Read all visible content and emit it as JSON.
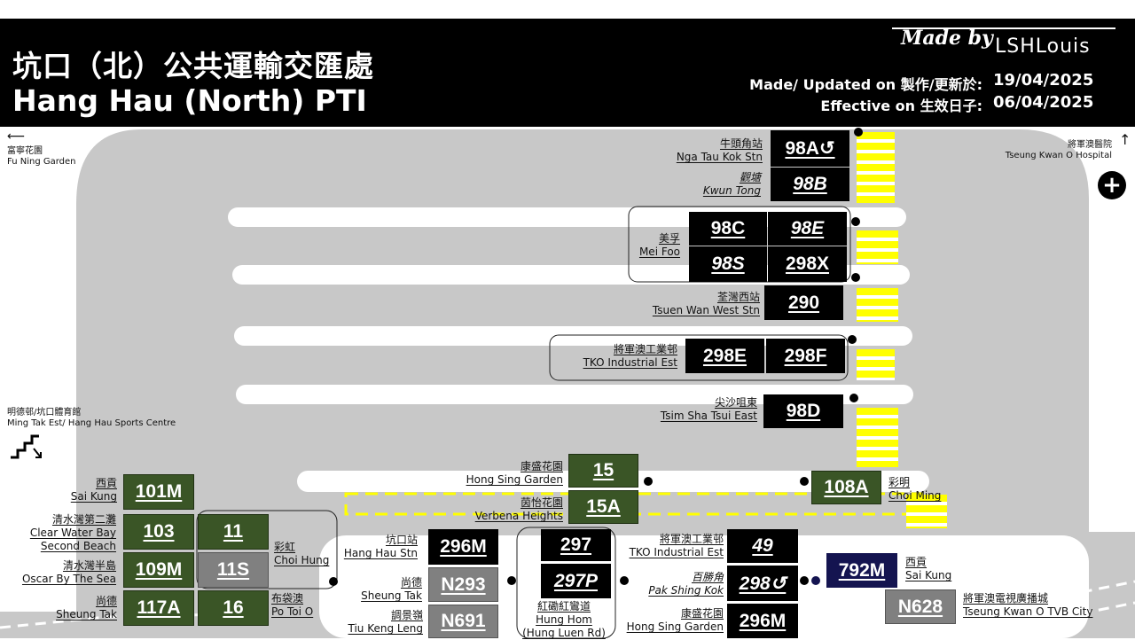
{
  "header": {
    "title_zh": "坑口（北）公共運輸交匯處",
    "title_en": "Hang Hau (North) PTI",
    "made_by_label": "Made by",
    "made_by_name": "LSHLouis",
    "updated_label": "Made/ Updated on 製作/更新於:",
    "updated_date": "19/04/2025",
    "effective_label": "Effective on 生效日子:",
    "effective_date": "06/04/2025"
  },
  "directions": {
    "fu_ning": {
      "zh": "富寧花園",
      "en": "Fu Ning Garden"
    },
    "hospital": {
      "zh": "將軍澳醫院",
      "en": "Tseung Kwan O Hospital"
    },
    "sports": {
      "zh": "明德邨/坑口體育館",
      "en": "Ming Tak Est/ Hang Hau Sports Centre"
    }
  },
  "routes": {
    "r98A": "98A↺",
    "r98B": "98B",
    "r98C": "98C",
    "r98E": "98E",
    "r98S": "98S",
    "r298X": "298X",
    "r290": "290",
    "r298E": "298E",
    "r298F": "298F",
    "r98D": "98D",
    "r15": "15",
    "r15A": "15A",
    "r108A": "108A",
    "r101M": "101M",
    "r103": "103",
    "r11": "11",
    "r109M": "109M",
    "r11S": "11S",
    "r117A": "117A",
    "r16": "16",
    "r296M_a": "296M",
    "rN293": "N293",
    "rN691": "N691",
    "r297": "297",
    "r297P": "297P",
    "r49": "49",
    "r298loop": "298↺",
    "r296M_b": "296M",
    "r792M": "792M",
    "rN628": "N628"
  },
  "dests": {
    "nga_tau_kok": {
      "zh": "牛頭角站",
      "en": "Nga Tau Kok Stn"
    },
    "kwun_tong": {
      "zh": "觀塘",
      "en": "Kwun Tong"
    },
    "mei_foo": {
      "zh": "美孚",
      "en": "Mei Foo"
    },
    "tsuen_wan_west": {
      "zh": "荃灣西站",
      "en": "Tsuen Wan West Stn"
    },
    "tko_ind_1": {
      "zh": "將軍澳工業邨",
      "en": "TKO Industrial Est"
    },
    "tst_east": {
      "zh": "尖沙咀東",
      "en": "Tsim Sha Tsui East"
    },
    "hong_sing_1": {
      "zh": "康盛花園",
      "en": "Hong Sing Garden"
    },
    "verbena": {
      "zh": "茵怡花園",
      "en": "Verbena Heights"
    },
    "choi_ming": {
      "zh": "彩明",
      "en": "Choi Ming"
    },
    "sai_kung_1": {
      "zh": "西貢",
      "en": "Sai Kung"
    },
    "clear_water": {
      "zh": "清水灣第二灘",
      "en1": "Clear Water Bay",
      "en2": "Second Beach"
    },
    "oscar": {
      "zh": "清水灣半島",
      "en": "Oscar By The Sea"
    },
    "sheung_tak_1": {
      "zh": "尚德",
      "en": "Sheung Tak"
    },
    "choi_hung": {
      "zh": "彩虹",
      "en": "Choi Hung"
    },
    "po_toi_o": {
      "zh": "布袋澳",
      "en": "Po Toi O"
    },
    "hang_hau_stn": {
      "zh": "坑口站",
      "en": "Hang Hau Stn"
    },
    "sheung_tak_2": {
      "zh": "尚德",
      "en": "Sheung Tak"
    },
    "tiu_keng_leng": {
      "zh": "調景嶺",
      "en": "Tiu Keng Leng"
    },
    "hung_hom": {
      "zh": "紅磡紅鸞道",
      "en1": "Hung Hom",
      "en2": "(Hung Luen Rd)"
    },
    "tko_ind_2": {
      "zh": "將軍澳工業邨",
      "en": "TKO Industrial Est"
    },
    "pak_shing_kok": {
      "zh": "百勝角",
      "en": "Pak Shing Kok"
    },
    "hong_sing_2": {
      "zh": "康盛花園",
      "en": "Hong Sing Garden"
    },
    "sai_kung_2": {
      "zh": "西貢",
      "en": "Sai Kung"
    },
    "tvb_city": {
      "zh": "將軍澳電視廣播城",
      "en": "Tseung Kwan O TVB City"
    }
  }
}
